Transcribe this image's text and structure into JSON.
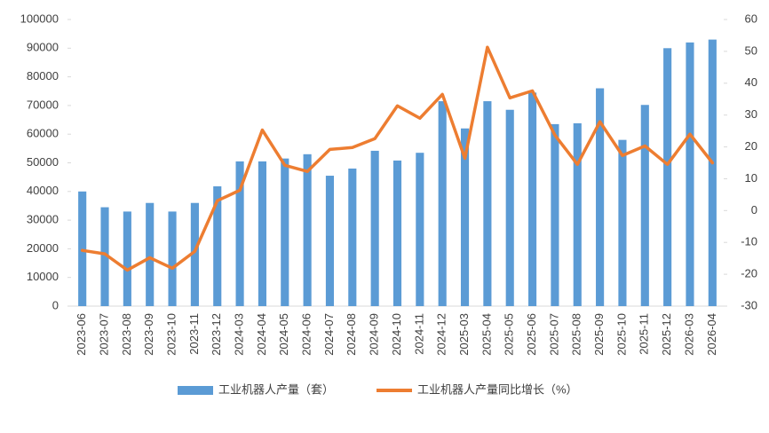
{
  "chart_data": {
    "type": "bar_line",
    "categories": [
      "2023-06",
      "2023-07",
      "2023-08",
      "2023-09",
      "2023-10",
      "2023-11",
      "2023-12",
      "2024-03",
      "2024-04",
      "2024-05",
      "2024-06",
      "2024-07",
      "2024-08",
      "2024-09",
      "2024-10",
      "2024-11",
      "2024-12",
      "2025-03",
      "2025-04",
      "2025-05",
      "2025-06",
      "2025-07",
      "2025-08",
      "2025-09",
      "2025-10",
      "2025-11",
      "2025-12",
      "2026-03",
      "2026-04"
    ],
    "series": [
      {
        "name": "工业机器人产量（套）",
        "type": "bar",
        "color": "#5b9bd5",
        "values": [
          40000,
          34500,
          33000,
          36000,
          33000,
          36000,
          41800,
          50500,
          50500,
          51500,
          53000,
          45500,
          48000,
          54200,
          50800,
          53500,
          71500,
          62000,
          71500,
          68500,
          74500,
          63500,
          63800,
          76000,
          58000,
          70200,
          90000,
          92000,
          93000
        ]
      },
      {
        "name": "工业机器人产量同比增长（%）",
        "type": "line",
        "axis": "y2",
        "color": "#ed7d31",
        "values": [
          -12.5,
          -13.6,
          -18.7,
          -14.8,
          -18.1,
          -12.8,
          3.1,
          6.4,
          25.3,
          14.2,
          12.3,
          19.2,
          19.8,
          22.6,
          32.9,
          29,
          36.5,
          16.4,
          51.3,
          35.4,
          37.6,
          23.7,
          14.5,
          27.9,
          17.3,
          20.3,
          14.5,
          24,
          15
        ]
      }
    ],
    "ylim": [
      0,
      100000
    ],
    "yticks": [
      0,
      10000,
      20000,
      30000,
      40000,
      50000,
      60000,
      70000,
      80000,
      90000,
      100000
    ],
    "y2lim": [
      -30,
      60
    ],
    "y2ticks": [
      -30,
      -20,
      -10,
      0,
      10,
      20,
      30,
      40,
      50,
      60
    ],
    "legend": "bottom"
  }
}
